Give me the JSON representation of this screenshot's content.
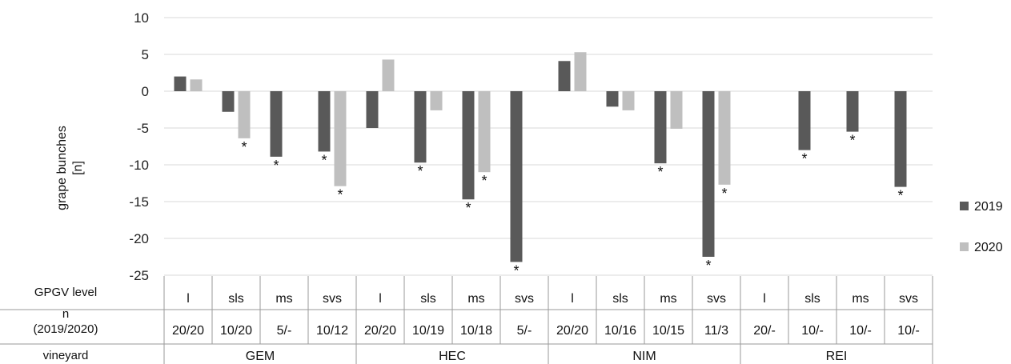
{
  "chart_data": {
    "type": "bar",
    "ylabel": "grape bunches\n[n]",
    "ylim": [
      -25,
      10
    ],
    "yticks": [
      10,
      5,
      0,
      -5,
      -10,
      -15,
      -20,
      -25
    ],
    "grid": true,
    "legend_position": "right",
    "series": [
      {
        "name": "2019",
        "color": "#595959",
        "values": [
          2,
          -2.8,
          -8.9,
          -8.2,
          -5,
          -9.7,
          -14.7,
          -23.2,
          4.1,
          -2.1,
          -9.8,
          -22.5,
          null,
          -8,
          -5.5,
          -13
        ]
      },
      {
        "name": "2020",
        "color": "#bfbfbf",
        "values": [
          1.6,
          -6.4,
          null,
          -12.9,
          4.3,
          -2.6,
          -11,
          null,
          5.3,
          -2.6,
          -5.1,
          -12.7,
          null,
          null,
          null,
          null
        ]
      }
    ],
    "significance_2019": [
      false,
      false,
      true,
      true,
      false,
      true,
      true,
      true,
      false,
      false,
      true,
      true,
      false,
      true,
      true,
      true
    ],
    "significance_2020": [
      false,
      true,
      false,
      true,
      false,
      false,
      true,
      false,
      false,
      false,
      false,
      true,
      false,
      false,
      false,
      false
    ],
    "table": {
      "row_labels": [
        "GPGV level",
        "n\n(2019/2020)",
        "vineyard"
      ],
      "levels": [
        "l",
        "sls",
        "ms",
        "svs",
        "l",
        "sls",
        "ms",
        "svs",
        "l",
        "sls",
        "ms",
        "svs",
        "l",
        "sls",
        "ms",
        "svs"
      ],
      "n": [
        "20/20",
        "10/20",
        "5/-",
        "10/12",
        "20/20",
        "10/19",
        "10/18",
        "5/-",
        "20/20",
        "10/16",
        "10/15",
        "11/3",
        "20/-",
        "10/-",
        "10/-",
        "10/-"
      ],
      "vineyards": [
        "GEM",
        "HEC",
        "NIM",
        "REI"
      ]
    },
    "significance_marker": "*"
  }
}
